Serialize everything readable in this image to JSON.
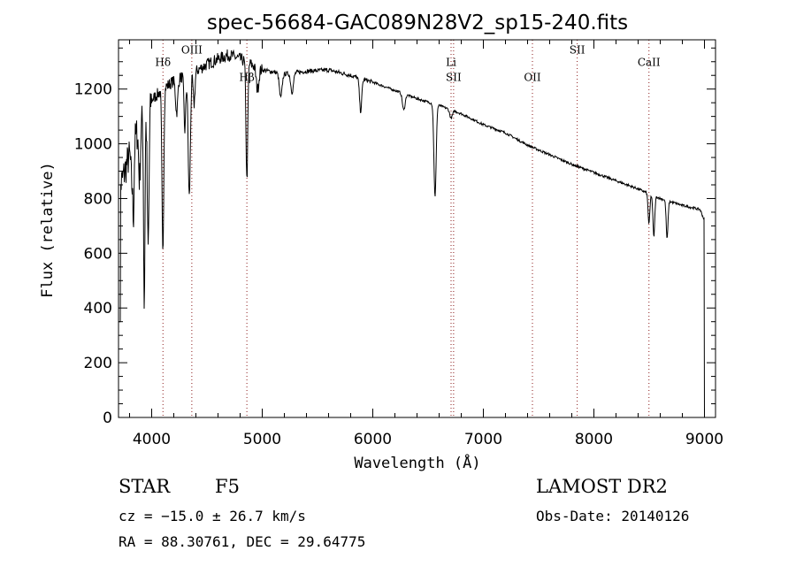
{
  "chart_data": {
    "type": "line",
    "title": "spec-56684-GAC089N28V2_sp15-240.fits",
    "xlabel": "Wavelength (Å)",
    "ylabel": "Flux (relative)",
    "xlim": [
      3700,
      9100
    ],
    "ylim": [
      0,
      1380
    ],
    "xticks": [
      4000,
      5000,
      6000,
      7000,
      8000,
      9000
    ],
    "yticks": [
      0,
      200,
      400,
      600,
      800,
      1000,
      1200
    ],
    "continuum": [
      [
        3700,
        820
      ],
      [
        3800,
        960
      ],
      [
        3900,
        1080
      ],
      [
        4000,
        1160
      ],
      [
        4100,
        1200
      ],
      [
        4200,
        1230
      ],
      [
        4300,
        1250
      ],
      [
        4400,
        1265
      ],
      [
        4500,
        1290
      ],
      [
        4600,
        1310
      ],
      [
        4700,
        1325
      ],
      [
        4800,
        1310
      ],
      [
        4900,
        1290
      ],
      [
        5000,
        1270
      ],
      [
        5200,
        1255
      ],
      [
        5400,
        1265
      ],
      [
        5600,
        1270
      ],
      [
        5800,
        1250
      ],
      [
        6000,
        1225
      ],
      [
        6200,
        1195
      ],
      [
        6400,
        1165
      ],
      [
        6600,
        1140
      ],
      [
        6800,
        1110
      ],
      [
        7000,
        1070
      ],
      [
        7200,
        1040
      ],
      [
        7400,
        995
      ],
      [
        7600,
        960
      ],
      [
        7800,
        925
      ],
      [
        8000,
        895
      ],
      [
        8200,
        865
      ],
      [
        8400,
        835
      ],
      [
        8600,
        800
      ],
      [
        8800,
        775
      ],
      [
        8960,
        760
      ],
      [
        9000,
        720
      ]
    ],
    "absorption_features": [
      [
        3820,
        120,
        8
      ],
      [
        3835,
        250,
        6
      ],
      [
        3890,
        200,
        8
      ],
      [
        3933,
        700,
        6
      ],
      [
        3968,
        520,
        8
      ],
      [
        4101,
        600,
        8
      ],
      [
        4226,
        120,
        10
      ],
      [
        4300,
        200,
        8
      ],
      [
        4340,
        450,
        10
      ],
      [
        4383,
        120,
        8
      ],
      [
        4861,
        430,
        8
      ],
      [
        4957,
        80,
        12
      ],
      [
        5167,
        90,
        12
      ],
      [
        5270,
        70,
        12
      ],
      [
        5890,
        120,
        10
      ],
      [
        6280,
        60,
        12
      ],
      [
        6563,
        340,
        10
      ],
      [
        6708,
        30,
        12
      ],
      [
        8498,
        110,
        8
      ],
      [
        8542,
        150,
        8
      ],
      [
        8662,
        140,
        8
      ]
    ],
    "line_markers": [
      {
        "label": "Hδ",
        "x": 4102,
        "label_y": 1285
      },
      {
        "label": "OIII",
        "x": 4363,
        "label_y": 1330
      },
      {
        "label": "Hβ",
        "x": 4861,
        "label_y": 1230
      },
      {
        "label": "Li",
        "x": 6708,
        "label_y": 1285
      },
      {
        "label": "SII",
        "x": 6731,
        "label_y": 1230
      },
      {
        "label": "OII",
        "x": 7444,
        "label_y": 1230
      },
      {
        "label": "SII",
        "x": 7849,
        "label_y": 1330
      },
      {
        "label": "CaII",
        "x": 8498,
        "label_y": 1285
      }
    ]
  },
  "info": {
    "object_class": "STAR",
    "subclass": "F5",
    "cz": "cz = −15.0 ± 26.7 km/s",
    "radec": "RA =  88.30761, DEC =  29.64775",
    "survey": "LAMOST DR2",
    "obs_date": "Obs-Date: 20140126"
  }
}
